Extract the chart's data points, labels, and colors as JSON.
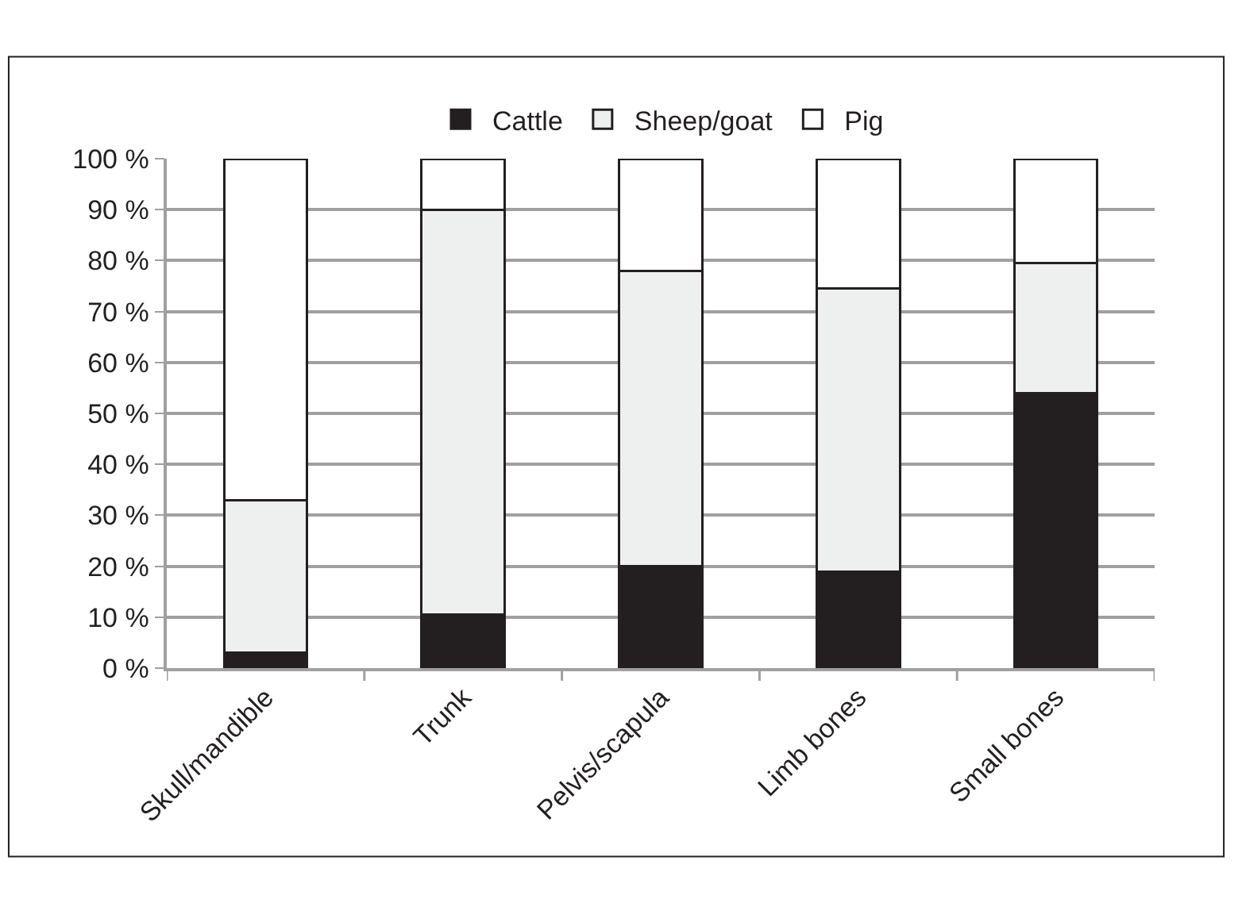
{
  "chart_data": {
    "type": "bar",
    "stacked": true,
    "categories": [
      "Skull/mandible",
      "Trunk",
      "Pelvis/scapula",
      "Limb bones",
      "Small bones"
    ],
    "series": [
      {
        "name": "Cattle",
        "color": "#231f20",
        "values": [
          3,
          10.5,
          20,
          19,
          54
        ]
      },
      {
        "name": "Sheep/goat",
        "color": "#eef0ef",
        "values": [
          30,
          79.5,
          58,
          55.5,
          25.5
        ]
      },
      {
        "name": "Pig",
        "color": "#ffffff",
        "values": [
          67,
          10,
          22,
          25.5,
          20.5
        ]
      }
    ],
    "ylim": [
      0,
      100
    ],
    "yticks": [
      {
        "value": 0,
        "label": "0 %"
      },
      {
        "value": 10,
        "label": "10 %"
      },
      {
        "value": 20,
        "label": "20 %"
      },
      {
        "value": 30,
        "label": "30 %"
      },
      {
        "value": 40,
        "label": "40 %"
      },
      {
        "value": 50,
        "label": "50 %"
      },
      {
        "value": 60,
        "label": "60 %"
      },
      {
        "value": 70,
        "label": "70 %"
      },
      {
        "value": 80,
        "label": "80 %"
      },
      {
        "value": 90,
        "label": "90 %"
      },
      {
        "value": 100,
        "label": "100 %"
      }
    ],
    "grid": "y",
    "legend": "top"
  }
}
